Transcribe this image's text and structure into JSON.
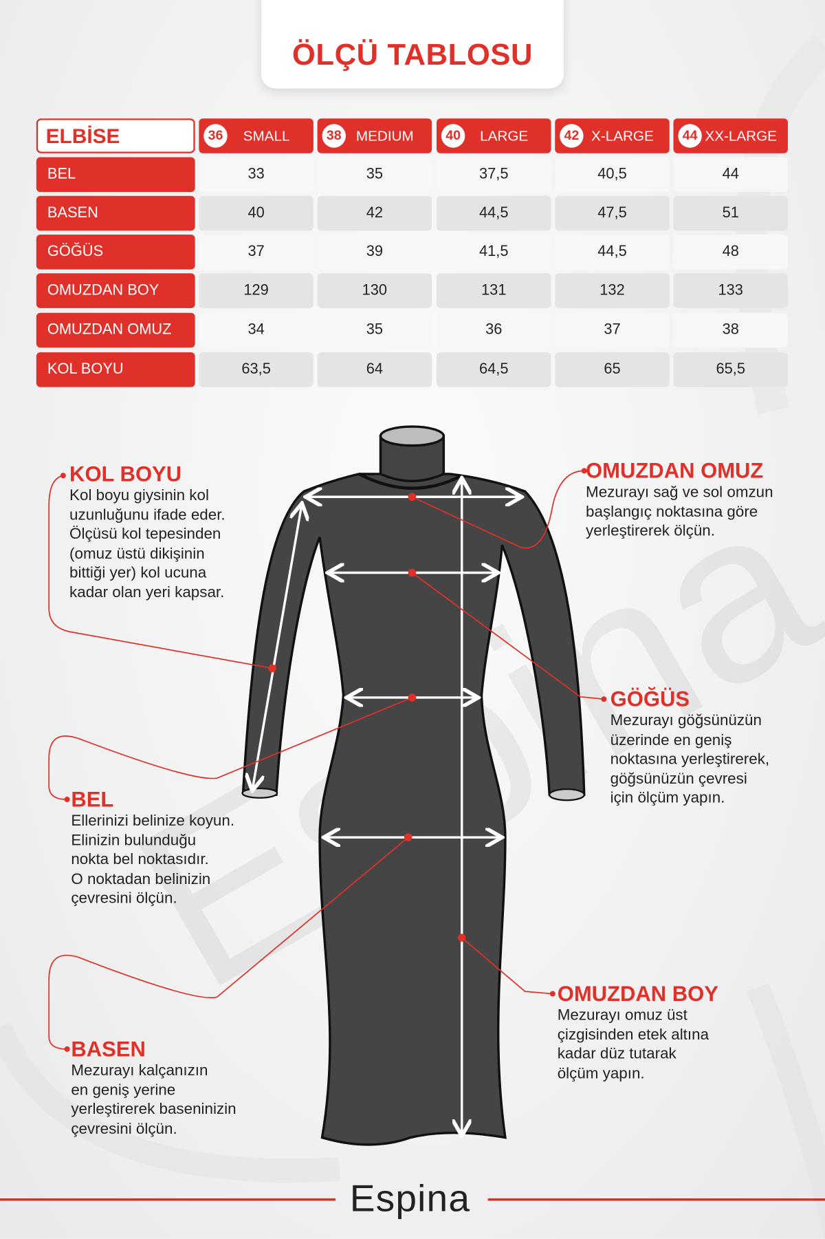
{
  "title": "ÖLÇÜ TABLOSU",
  "table": {
    "corner_label": "ELBİSE",
    "sizes": [
      {
        "num": "36",
        "label": "SMALL"
      },
      {
        "num": "38",
        "label": "MEDIUM"
      },
      {
        "num": "40",
        "label": "LARGE"
      },
      {
        "num": "42",
        "label": "X-LARGE"
      },
      {
        "num": "44",
        "label": "XX-LARGE"
      }
    ],
    "rows": [
      {
        "label": "BEL",
        "values": [
          "33",
          "35",
          "37,5",
          "40,5",
          "44"
        ]
      },
      {
        "label": "BASEN",
        "values": [
          "40",
          "42",
          "44,5",
          "47,5",
          "51"
        ]
      },
      {
        "label": "GÖĞÜS",
        "values": [
          "37",
          "39",
          "41,5",
          "44,5",
          "48"
        ]
      },
      {
        "label": "OMUZDAN BOY",
        "values": [
          "129",
          "130",
          "131",
          "132",
          "133"
        ]
      },
      {
        "label": "OMUZDAN OMUZ",
        "values": [
          "34",
          "35",
          "36",
          "37",
          "38"
        ]
      },
      {
        "label": "KOL BOYU",
        "values": [
          "63,5",
          "64",
          "64,5",
          "65",
          "65,5"
        ]
      }
    ]
  },
  "annotations": {
    "kol_boyu": {
      "title": "KOL BOYU",
      "text": "Kol boyu giysinin kol\nuzunluğunu ifade eder.\nÖlçüsü kol tepesinden\n(omuz üstü dikişinin\nbittiği yer) kol ucuna\nkadar olan yeri kapsar."
    },
    "omuzdan_omuz": {
      "title": "OMUZDAN OMUZ",
      "text": "Mezurayı sağ ve sol omzun\nbaşlangıç noktasına göre\nyerleştirerek ölçün."
    },
    "gogus": {
      "title": "GÖĞÜS",
      "text": "Mezurayı göğsünüzün\nüzerinde en geniş\nnoktasına yerleştirerek,\ngöğsünüzün çevresi\niçin ölçüm yapın."
    },
    "bel": {
      "title": "BEL",
      "text": "Ellerinizi belinize koyun.\nElinizin bulunduğu\nnokta bel noktasıdır.\nO noktadan belinizin\nçevresini ölçün."
    },
    "omuzdan_boy": {
      "title": "OMUZDAN BOY",
      "text": "Mezurayı omuz üst\nçizgisinden etek altına\nkadar düz tutarak\nölçüm yapın."
    },
    "basen": {
      "title": "BASEN",
      "text": "Mezurayı kalçanızın\nen geniş yerine\nyerleştirerek baseninizin\nçevresini ölçün."
    }
  },
  "brand": "Espina",
  "watermark": "Espina",
  "colors": {
    "accent": "#e0302a",
    "dress": "#424242",
    "text": "#222222"
  }
}
